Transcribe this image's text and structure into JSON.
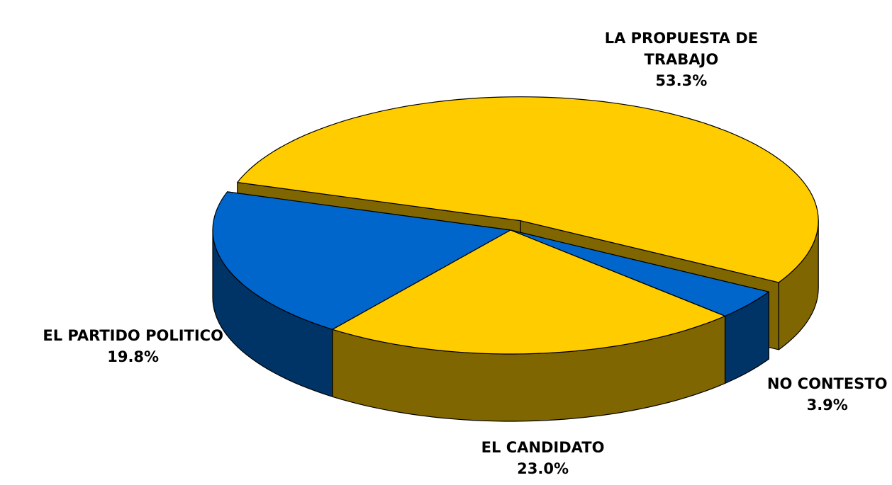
{
  "chart_data": {
    "type": "pie3d",
    "categories": [
      "LA PROPUESTA DE TRABAJO",
      "NO CONTESTO",
      "EL CANDIDATO",
      "EL PARTIDO POLITICO"
    ],
    "values": [
      53.3,
      3.9,
      23.0,
      19.8
    ],
    "value_labels": [
      "53.3%",
      "3.9%",
      "23.0%",
      "19.8%"
    ],
    "colors": [
      "#FFCC00",
      "#0066CC",
      "#FFCC00",
      "#0066CC"
    ],
    "side_colors": [
      "#806600",
      "#003366",
      "#806600",
      "#003366"
    ]
  }
}
